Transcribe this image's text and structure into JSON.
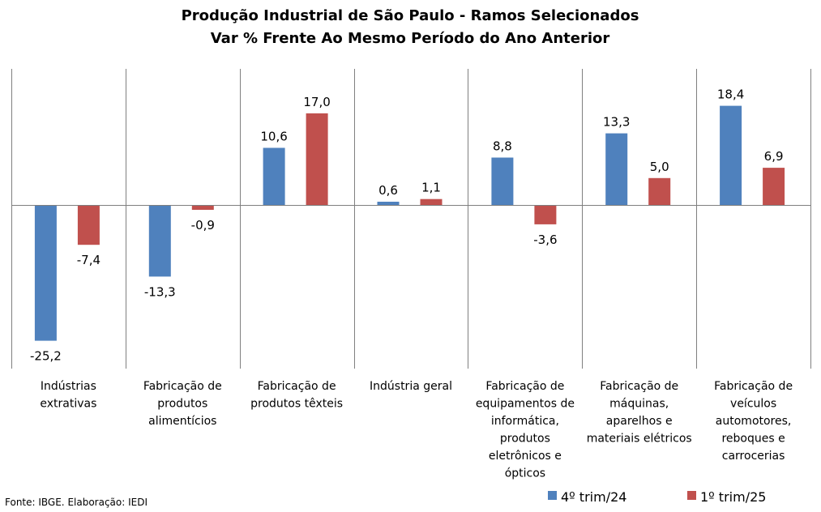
{
  "chart_data": {
    "type": "bar",
    "title": "Produção Industrial de São Paulo - Ramos Selecionados",
    "subtitle": "Var % Frente Ao Mesmo Período do Ano Anterior",
    "categories": [
      [
        "Indústrias",
        "extrativas"
      ],
      [
        "Fabricação de",
        "produtos",
        "alimentícios"
      ],
      [
        "Fabricação de",
        "produtos têxteis"
      ],
      [
        "Indústria geral"
      ],
      [
        "Fabricação de",
        "equipamentos de",
        "informática,",
        "produtos",
        "eletrônicos e",
        "ópticos"
      ],
      [
        "Fabricação de",
        "máquinas,",
        "aparelhos e",
        "materiais elétricos"
      ],
      [
        "Fabricação de",
        "veículos",
        "automotores,",
        "reboques e",
        "carrocerias"
      ]
    ],
    "series": [
      {
        "name": "4º trim/24",
        "color": "#4F81BD",
        "values": [
          -25.2,
          -13.3,
          10.6,
          0.6,
          8.8,
          13.3,
          18.4
        ],
        "labels": [
          "-25,2",
          "-13,3",
          "10,6",
          "0,6",
          "8,8",
          "13,3",
          "18,4"
        ]
      },
      {
        "name": "1º trim/25",
        "color": "#C0504D",
        "values": [
          -7.4,
          -0.9,
          17.0,
          1.1,
          -3.6,
          5.0,
          6.9
        ],
        "labels": [
          "-7,4",
          "-0,9",
          "17,0",
          "1,1",
          "-3,6",
          "5,0",
          "6,9"
        ]
      }
    ],
    "gridlines": "vertical category separators",
    "legend_position": "bottom-right"
  },
  "source": "Fonte: IBGE. Elaboração: IEDI"
}
